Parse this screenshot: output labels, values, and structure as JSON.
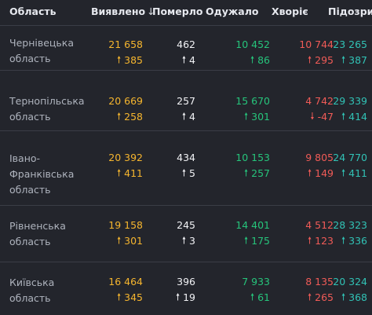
{
  "headers": {
    "region": "Область",
    "detected": "Виявлено",
    "sort_icon": "↓",
    "dead": "Померло",
    "recovered": "Одужало",
    "sick": "Хворіє",
    "suspected": "Підозри"
  },
  "colors": {
    "background": "#23252c",
    "detected": "#f5b52e",
    "dead": "#f1f2f5",
    "recovered": "#26c47b",
    "sick": "#f05b57",
    "suspected": "#31c2b5",
    "border": "#3a3d46"
  },
  "icons": {
    "up": "arrow-up-icon",
    "down": "arrow-down-icon"
  },
  "rows": [
    {
      "region_line1": "Чернівецька",
      "region_line2": "область",
      "region_line3": "",
      "detected": "21 658",
      "detected_delta": "385",
      "dead": "462",
      "dead_delta": "4",
      "recovered": "10 452",
      "recovered_delta": "86",
      "sick": "10 744",
      "sick_delta": "295",
      "sick_arrow": "↑",
      "suspected": "23 265",
      "suspected_delta": "387"
    },
    {
      "region_line1": "Тернопільська",
      "region_line2": "область",
      "region_line3": "",
      "detected": "20 669",
      "detected_delta": "258",
      "dead": "257",
      "dead_delta": "4",
      "recovered": "15 670",
      "recovered_delta": "301",
      "sick": "4 742",
      "sick_delta": "-47",
      "sick_arrow": "↓",
      "suspected": "29 339",
      "suspected_delta": "414"
    },
    {
      "region_line1": "Івано-",
      "region_line2": "Франківська",
      "region_line3": "область",
      "detected": "20 392",
      "detected_delta": "411",
      "dead": "434",
      "dead_delta": "5",
      "recovered": "10 153",
      "recovered_delta": "257",
      "sick": "9 805",
      "sick_delta": "149",
      "sick_arrow": "↑",
      "suspected": "24 770",
      "suspected_delta": "411"
    },
    {
      "region_line1": "Рівненська",
      "region_line2": "область",
      "region_line3": "",
      "detected": "19 158",
      "detected_delta": "301",
      "dead": "245",
      "dead_delta": "3",
      "recovered": "14 401",
      "recovered_delta": "175",
      "sick": "4 512",
      "sick_delta": "123",
      "sick_arrow": "↑",
      "suspected": "28 323",
      "suspected_delta": "336"
    },
    {
      "region_line1": "Київська",
      "region_line2": "область",
      "region_line3": "",
      "detected": "16 464",
      "detected_delta": "345",
      "dead": "396",
      "dead_delta": "19",
      "recovered": "7 933",
      "recovered_delta": "61",
      "sick": "8 135",
      "sick_delta": "265",
      "sick_arrow": "↑",
      "suspected": "20 324",
      "suspected_delta": "368"
    }
  ]
}
